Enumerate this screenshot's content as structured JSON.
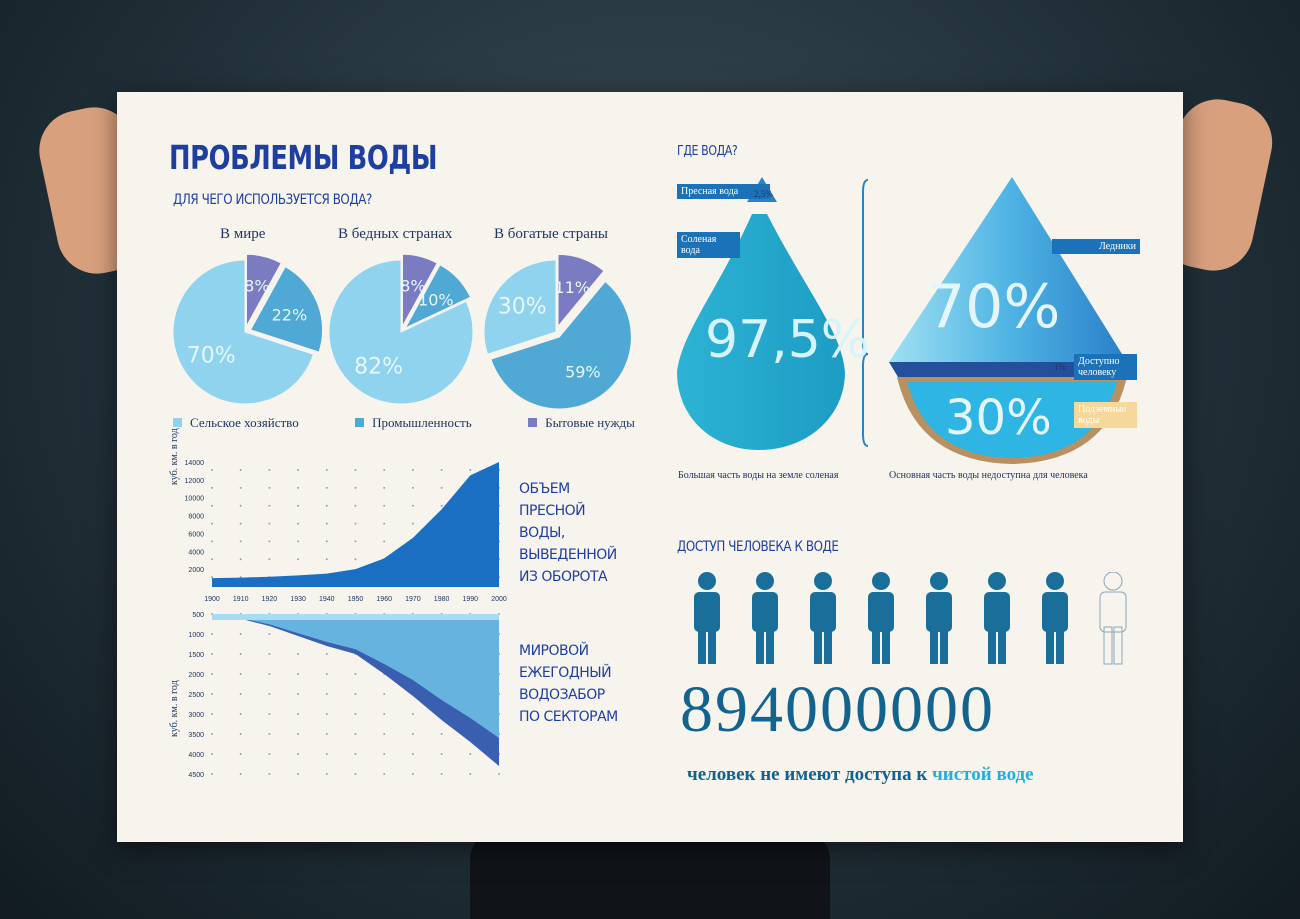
{
  "title": "ПРОБЛЕМЫ ВОДЫ",
  "usage": {
    "subtitle": "ДЛЯ ЧЕГО ИСПОЛЬЗУЕТСЯ ВОДА?",
    "legend": [
      "Сельское хозяйство",
      "Промышленность",
      "Бытовые нужды"
    ]
  },
  "where": {
    "title": "ГДЕ ВОДА?",
    "fresh": "Пресная вода",
    "fresh_pct": "2,5%",
    "salt": "Соленая вода",
    "salt_pct": "97,5%",
    "glaciers": "Ледники",
    "glaciers_pct": "70%",
    "accessible": "Доступно человеку",
    "accessible_pct": "1%",
    "ground": "Подземные воды",
    "ground_pct": "30%",
    "cap1": "Большая часть воды на земле соленая",
    "cap2": "Основная часть воды недоступна для человека"
  },
  "chart1": {
    "label": "ОБЪЕМ ПРЕСНОЙ ВОДЫ, ВЫВЕДЕННОЙ ИЗ ОБОРОТА",
    "ylabel": "куб. км. в год"
  },
  "chart2": {
    "label": "МИРОВОЙ ЕЖЕГОДНЫЙ ВОДОЗАБОР ПО СЕКТОРАМ",
    "ylabel": "куб. км. в год"
  },
  "access": {
    "title": "ДОСТУП ЧЕЛОВЕКА К ВОДЕ",
    "number": "894000000",
    "caption_pre": "человек не имеют доступа к ",
    "caption_hl": "чистой воде"
  },
  "colors": {
    "agri": "#8fd3ee",
    "industry": "#4fa9d4",
    "domestic": "#7b7bc2",
    "accent": "#1f3f9f"
  },
  "chart_data": [
    {
      "type": "pie",
      "title": "В мире",
      "categories": [
        "Сельское хозяйство",
        "Промышленность",
        "Бытовые нужды"
      ],
      "values": [
        70,
        22,
        8
      ],
      "labels": [
        "70%",
        "22%",
        "8%"
      ]
    },
    {
      "type": "pie",
      "title": "В бедных странах",
      "categories": [
        "Сельское хозяйство",
        "Промышленность",
        "Бытовые нужды"
      ],
      "values": [
        82,
        10,
        8
      ],
      "labels": [
        "82%",
        "10%",
        "8%"
      ]
    },
    {
      "type": "pie",
      "title": "В богатые страны",
      "categories": [
        "Сельское хозяйство",
        "Промышленность",
        "Бытовые нужды"
      ],
      "values": [
        30,
        59,
        11
      ],
      "labels": [
        "30%",
        "59%",
        "11%"
      ]
    },
    {
      "type": "area",
      "x": [
        1900,
        1910,
        1920,
        1930,
        1940,
        1950,
        1960,
        1970,
        1980,
        1990,
        2000
      ],
      "values": [
        1000,
        1050,
        1150,
        1300,
        1500,
        2000,
        3200,
        5500,
        8700,
        12500,
        14000
      ],
      "yticks": [
        2000,
        4000,
        6000,
        8000,
        10000,
        12000,
        14000
      ],
      "ylim": [
        0,
        14000
      ]
    },
    {
      "type": "area",
      "x": [
        1900,
        1910,
        1920,
        1930,
        1940,
        1950,
        1960,
        1970,
        1980,
        1990,
        2000
      ],
      "series": [
        {
          "values": [
            500,
            620,
            800,
            1050,
            1300,
            1500,
            2000,
            2550,
            3150,
            3700,
            4300
          ]
        },
        {
          "values": [
            500,
            600,
            760,
            980,
            1200,
            1380,
            1750,
            2150,
            2650,
            3100,
            3600
          ]
        }
      ],
      "yticks": [
        500,
        1000,
        1500,
        2000,
        2500,
        3000,
        3500,
        4000,
        4500
      ],
      "ylim": [
        500,
        4500
      ]
    }
  ]
}
